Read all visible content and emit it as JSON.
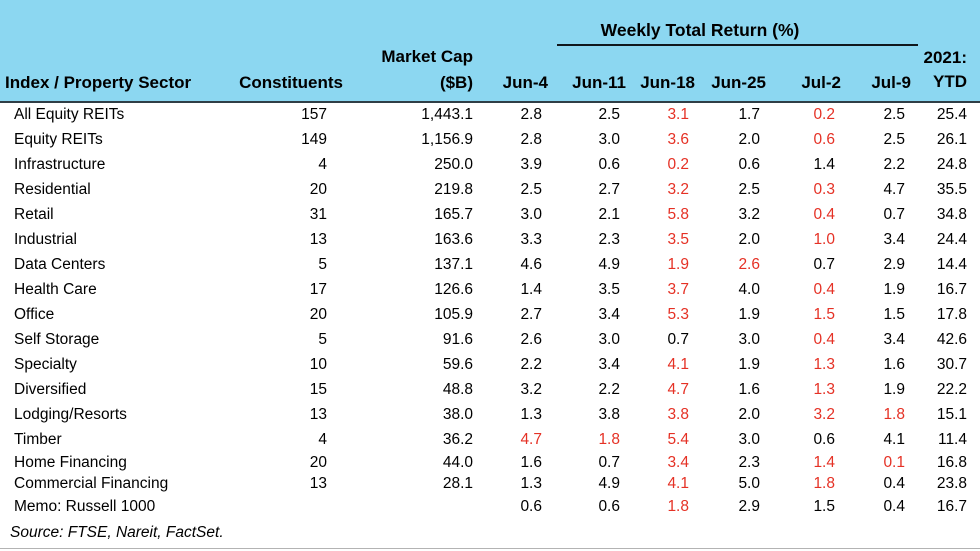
{
  "colors": {
    "header_bg": "#8cd7f1",
    "negative": "#e53125",
    "text": "#000000"
  },
  "header": {
    "group_label": "Weekly Total Return (%)"
  },
  "source": "Source: FTSE, Nareit, FactSet.",
  "chart_data": {
    "type": "table",
    "title": "Weekly Total Return (%)",
    "columns": [
      {
        "id": "label",
        "lines": [
          "Index / Property Sector"
        ]
      },
      {
        "id": "constituents",
        "lines": [
          "Constituents"
        ]
      },
      {
        "id": "mcap",
        "lines": [
          "Market Cap",
          "($B)"
        ]
      },
      {
        "id": "jun4",
        "lines": [
          "Jun-4"
        ]
      },
      {
        "id": "jun11",
        "lines": [
          "Jun-11"
        ]
      },
      {
        "id": "jun18",
        "lines": [
          "Jun-18"
        ]
      },
      {
        "id": "jun25",
        "lines": [
          "Jun-25"
        ]
      },
      {
        "id": "jul2",
        "lines": [
          "Jul-2"
        ]
      },
      {
        "id": "jul9",
        "lines": [
          "Jul-9"
        ]
      },
      {
        "id": "ytd",
        "lines": [
          "2021:",
          "YTD"
        ]
      }
    ],
    "group_header_spans": [
      "Jun-4",
      "Jun-11",
      "Jun-18",
      "Jun-25",
      "Jul-2",
      "Jul-9"
    ],
    "rows": [
      {
        "label": "All Equity REITs",
        "constituents": "157",
        "market_cap": "1,443.1",
        "returns": [
          {
            "v": "2.8",
            "red": false
          },
          {
            "v": "2.5",
            "red": false
          },
          {
            "v": "3.1",
            "red": true
          },
          {
            "v": "1.7",
            "red": false
          },
          {
            "v": "0.2",
            "red": true
          },
          {
            "v": "2.5",
            "red": false
          }
        ],
        "ytd": "25.4"
      },
      {
        "label": "Equity REITs",
        "constituents": "149",
        "market_cap": "1,156.9",
        "returns": [
          {
            "v": "2.8",
            "red": false
          },
          {
            "v": "3.0",
            "red": false
          },
          {
            "v": "3.6",
            "red": true
          },
          {
            "v": "2.0",
            "red": false
          },
          {
            "v": "0.6",
            "red": true
          },
          {
            "v": "2.5",
            "red": false
          }
        ],
        "ytd": "26.1"
      },
      {
        "label": "Infrastructure",
        "constituents": "4",
        "market_cap": "250.0",
        "returns": [
          {
            "v": "3.9",
            "red": false
          },
          {
            "v": "0.6",
            "red": false
          },
          {
            "v": "0.2",
            "red": true
          },
          {
            "v": "0.6",
            "red": false
          },
          {
            "v": "1.4",
            "red": false
          },
          {
            "v": "2.2",
            "red": false
          }
        ],
        "ytd": "24.8"
      },
      {
        "label": "Residential",
        "constituents": "20",
        "market_cap": "219.8",
        "returns": [
          {
            "v": "2.5",
            "red": false
          },
          {
            "v": "2.7",
            "red": false
          },
          {
            "v": "3.2",
            "red": true
          },
          {
            "v": "2.5",
            "red": false
          },
          {
            "v": "0.3",
            "red": true
          },
          {
            "v": "4.7",
            "red": false
          }
        ],
        "ytd": "35.5"
      },
      {
        "label": "Retail",
        "constituents": "31",
        "market_cap": "165.7",
        "returns": [
          {
            "v": "3.0",
            "red": false
          },
          {
            "v": "2.1",
            "red": false
          },
          {
            "v": "5.8",
            "red": true
          },
          {
            "v": "3.2",
            "red": false
          },
          {
            "v": "0.4",
            "red": true
          },
          {
            "v": "0.7",
            "red": false
          }
        ],
        "ytd": "34.8"
      },
      {
        "label": "Industrial",
        "constituents": "13",
        "market_cap": "163.6",
        "returns": [
          {
            "v": "3.3",
            "red": false
          },
          {
            "v": "2.3",
            "red": false
          },
          {
            "v": "3.5",
            "red": true
          },
          {
            "v": "2.0",
            "red": false
          },
          {
            "v": "1.0",
            "red": true
          },
          {
            "v": "3.4",
            "red": false
          }
        ],
        "ytd": "24.4"
      },
      {
        "label": "Data Centers",
        "constituents": "5",
        "market_cap": "137.1",
        "returns": [
          {
            "v": "4.6",
            "red": false
          },
          {
            "v": "4.9",
            "red": false
          },
          {
            "v": "1.9",
            "red": true
          },
          {
            "v": "2.6",
            "red": true
          },
          {
            "v": "0.7",
            "red": false
          },
          {
            "v": "2.9",
            "red": false
          }
        ],
        "ytd": "14.4"
      },
      {
        "label": "Health Care",
        "constituents": "17",
        "market_cap": "126.6",
        "returns": [
          {
            "v": "1.4",
            "red": false
          },
          {
            "v": "3.5",
            "red": false
          },
          {
            "v": "3.7",
            "red": true
          },
          {
            "v": "4.0",
            "red": false
          },
          {
            "v": "0.4",
            "red": true
          },
          {
            "v": "1.9",
            "red": false
          }
        ],
        "ytd": "16.7"
      },
      {
        "label": "Office",
        "constituents": "20",
        "market_cap": "105.9",
        "returns": [
          {
            "v": "2.7",
            "red": false
          },
          {
            "v": "3.4",
            "red": false
          },
          {
            "v": "5.3",
            "red": true
          },
          {
            "v": "1.9",
            "red": false
          },
          {
            "v": "1.5",
            "red": true
          },
          {
            "v": "1.5",
            "red": false
          }
        ],
        "ytd": "17.8"
      },
      {
        "label": "Self Storage",
        "constituents": "5",
        "market_cap": "91.6",
        "returns": [
          {
            "v": "2.6",
            "red": false
          },
          {
            "v": "3.0",
            "red": false
          },
          {
            "v": "0.7",
            "red": false
          },
          {
            "v": "3.0",
            "red": false
          },
          {
            "v": "0.4",
            "red": true
          },
          {
            "v": "3.4",
            "red": false
          }
        ],
        "ytd": "42.6"
      },
      {
        "label": "Specialty",
        "constituents": "10",
        "market_cap": "59.6",
        "returns": [
          {
            "v": "2.2",
            "red": false
          },
          {
            "v": "3.4",
            "red": false
          },
          {
            "v": "4.1",
            "red": true
          },
          {
            "v": "1.9",
            "red": false
          },
          {
            "v": "1.3",
            "red": true
          },
          {
            "v": "1.6",
            "red": false
          }
        ],
        "ytd": "30.7"
      },
      {
        "label": "Diversified",
        "constituents": "15",
        "market_cap": "48.8",
        "returns": [
          {
            "v": "3.2",
            "red": false
          },
          {
            "v": "2.2",
            "red": false
          },
          {
            "v": "4.7",
            "red": true
          },
          {
            "v": "1.6",
            "red": false
          },
          {
            "v": "1.3",
            "red": true
          },
          {
            "v": "1.9",
            "red": false
          }
        ],
        "ytd": "22.2"
      },
      {
        "label": "Lodging/Resorts",
        "constituents": "13",
        "market_cap": "38.0",
        "returns": [
          {
            "v": "1.3",
            "red": false
          },
          {
            "v": "3.8",
            "red": false
          },
          {
            "v": "3.8",
            "red": true
          },
          {
            "v": "2.0",
            "red": false
          },
          {
            "v": "3.2",
            "red": true
          },
          {
            "v": "1.8",
            "red": true
          }
        ],
        "ytd": "15.1"
      },
      {
        "label": "Timber",
        "constituents": "4",
        "market_cap": "36.2",
        "returns": [
          {
            "v": "4.7",
            "red": true
          },
          {
            "v": "1.8",
            "red": true
          },
          {
            "v": "5.4",
            "red": true
          },
          {
            "v": "3.0",
            "red": false
          },
          {
            "v": "0.6",
            "red": false
          },
          {
            "v": "4.1",
            "red": false
          }
        ],
        "ytd": "11.4"
      },
      {
        "label": "Home Financing",
        "constituents": "20",
        "market_cap": "44.0",
        "returns": [
          {
            "v": "1.6",
            "red": false
          },
          {
            "v": "0.7",
            "red": false
          },
          {
            "v": "3.4",
            "red": true
          },
          {
            "v": "2.3",
            "red": false
          },
          {
            "v": "1.4",
            "red": true
          },
          {
            "v": "0.1",
            "red": true
          }
        ],
        "ytd": "16.8"
      },
      {
        "label": "Commercial Financing",
        "constituents": "13",
        "market_cap": "28.1",
        "returns": [
          {
            "v": "1.3",
            "red": false
          },
          {
            "v": "4.9",
            "red": false
          },
          {
            "v": "4.1",
            "red": true
          },
          {
            "v": "5.0",
            "red": false
          },
          {
            "v": "1.8",
            "red": true
          },
          {
            "v": "0.4",
            "red": false
          }
        ],
        "ytd": "23.8"
      },
      {
        "label": "Memo: Russell 1000",
        "constituents": "",
        "market_cap": "",
        "returns": [
          {
            "v": "0.6",
            "red": false
          },
          {
            "v": "0.6",
            "red": false
          },
          {
            "v": "1.8",
            "red": true
          },
          {
            "v": "2.9",
            "red": false
          },
          {
            "v": "1.5",
            "red": false
          },
          {
            "v": "0.4",
            "red": false
          }
        ],
        "ytd": "16.7"
      }
    ],
    "source_note": "Source: FTSE, Nareit, FactSet."
  }
}
